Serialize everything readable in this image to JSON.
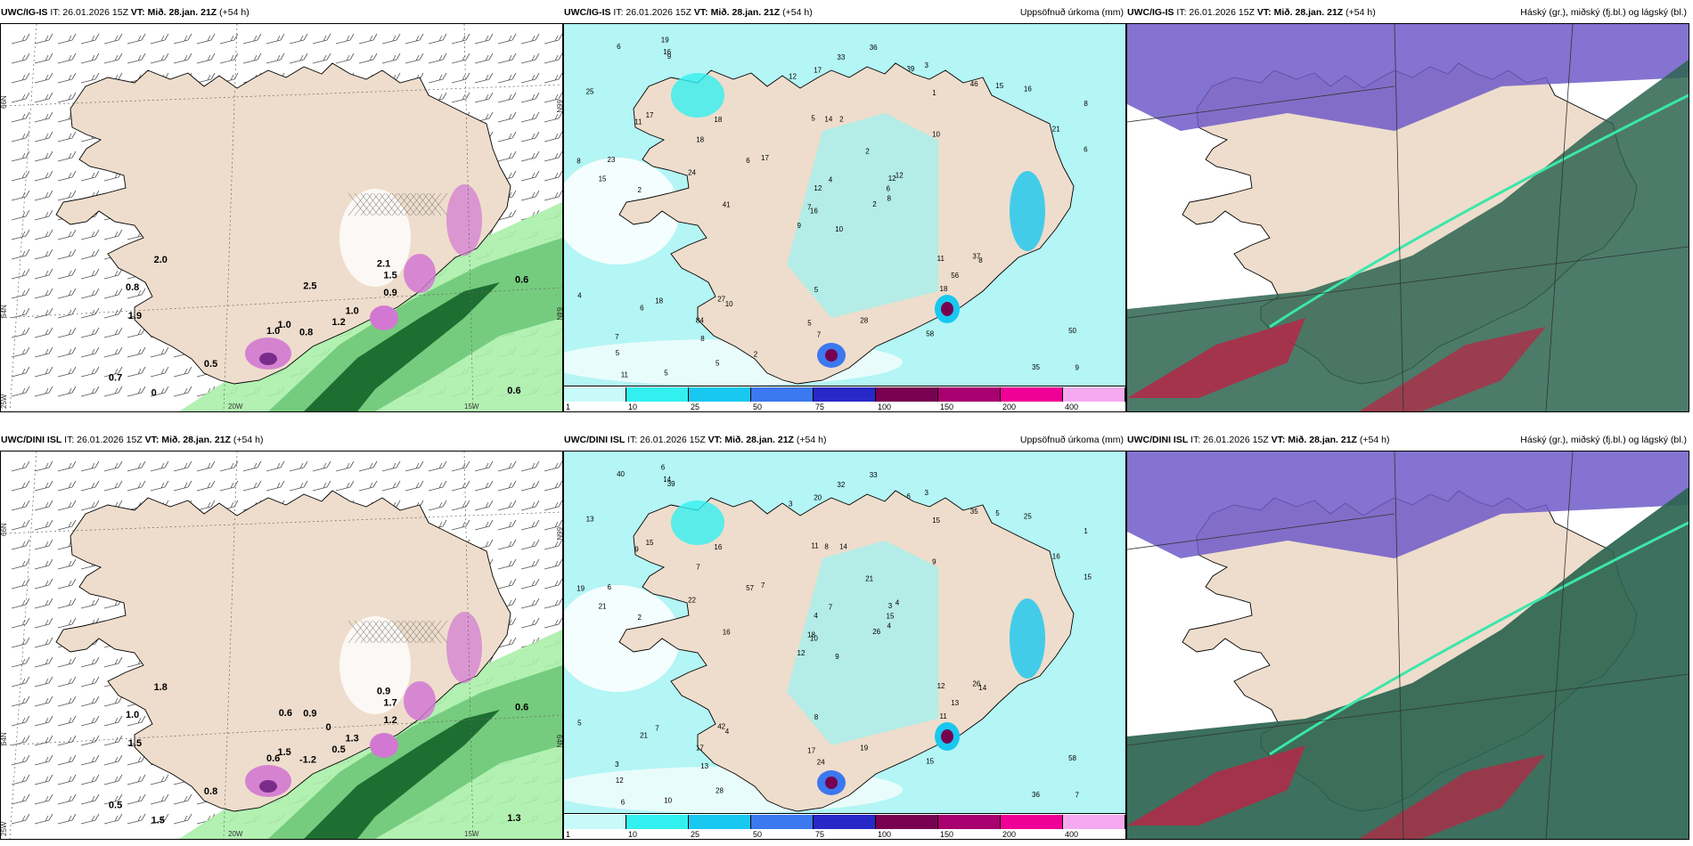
{
  "panels": {
    "p1": {
      "model": "UWC/IG-IS",
      "it": "IT: 26.01.2026 15Z",
      "vt": "VT: Mið. 28.jan. 21Z",
      "lead": "(+54 h)",
      "right": ""
    },
    "p2": {
      "model": "UWC/IG-IS",
      "it": "IT: 26.01.2026 15Z",
      "vt": "VT: Mið. 28.jan. 21Z",
      "lead": "(+54 h)",
      "right": "Uppsöfnuð úrkoma (mm)"
    },
    "p3": {
      "model": "UWC/IG-IS",
      "it": "IT: 26.01.2026 15Z",
      "vt": "VT: Mið. 28.jan. 21Z",
      "lead": "(+54 h)",
      "right": "Háský (gr.), miðský (fj.bl.) og lágský (bl.)"
    },
    "p4": {
      "model": "UWC/DINI ISL",
      "it": "IT: 26.01.2026 15Z",
      "vt": "VT: Mið. 28.jan. 21Z",
      "lead": "(+54 h)",
      "right": ""
    },
    "p5": {
      "model": "UWC/DINI ISL",
      "it": "IT: 26.01.2026 15Z",
      "vt": "VT: Mið. 28.jan. 21Z",
      "lead": "(+54 h)",
      "right": "Uppsöfnuð úrkoma (mm)"
    },
    "p6": {
      "model": "UWC/DINI ISL",
      "it": "IT: 26.01.2026 15Z",
      "vt": "VT: Mið. 28.jan. 21Z",
      "lead": "(+54 h)",
      "right": "Háský (gr.), miðský (fj.bl.) og lágský (bl.)"
    }
  },
  "axis_labels": {
    "lat66": "66N",
    "lat64": "64N",
    "lon25": "25W",
    "lon20": "20W",
    "lon15": "15W"
  },
  "colorbar": {
    "ticks": [
      "1",
      "10",
      "25",
      "50",
      "75",
      "100",
      "150",
      "200",
      "400"
    ],
    "colors": [
      "#c8fafa",
      "#33f0f0",
      "#18c8f0",
      "#3c78f0",
      "#2828c8",
      "#780050",
      "#a8006e",
      "#f00096",
      "#f5aaf0"
    ]
  },
  "colors": {
    "land": "#eeddcc",
    "sea_precip": "#b4f5f5",
    "grass_dark": "#1e6e32",
    "grass_light": "#aaf0aa",
    "snow_pink": "#d278d2",
    "cloud_high": "#6e5ac8",
    "cloud_mid": "#2d6450",
    "cloud_low": "#b42846"
  },
  "wind_panel_labels": {
    "top": [
      "0.8",
      "0.8",
      "1.0",
      "0.7",
      "1.0",
      "0.5",
      "2.1",
      "2.5",
      "1.5",
      "1.2",
      "2.0",
      "0.6",
      "1.9",
      "0.6",
      "1.0",
      "0.9",
      "0"
    ],
    "bottom": [
      "-1.2",
      "1.0",
      "1.5",
      "0.5",
      "1.3",
      "0.8",
      "0.9",
      "0.9",
      "1.7",
      "0.5",
      "1.8",
      "1.3",
      "1.5",
      "0.6",
      "0.6",
      "1.2",
      "1.5",
      "0.6",
      "0"
    ]
  },
  "precip_labels": {
    "top": [
      "10",
      "11",
      "16",
      "7",
      "12",
      "10",
      "3",
      "2",
      "1",
      "2",
      "9",
      "9",
      "2",
      "8",
      "9",
      "10",
      "5",
      "5",
      "2",
      "18",
      "17",
      "5",
      "8",
      "14",
      "12",
      "8",
      "17",
      "17",
      "15",
      "11",
      "6",
      "7",
      "5",
      "12",
      "18",
      "46",
      "27",
      "35",
      "50",
      "37",
      "36",
      "6",
      "24",
      "18",
      "5",
      "8",
      "6",
      "11",
      "7",
      "8",
      "6",
      "21",
      "25",
      "56",
      "58",
      "84",
      "16",
      "6",
      "28",
      "16",
      "33",
      "41",
      "23",
      "18",
      "15",
      "19",
      "39",
      "12",
      "4",
      "4",
      "5",
      "2"
    ],
    "bottom": [
      "9",
      "9",
      "10",
      "3",
      "3",
      "4",
      "3",
      "14",
      "15",
      "26",
      "39",
      "7",
      "2",
      "1",
      "12",
      "9",
      "10",
      "11",
      "21",
      "7",
      "7",
      "12",
      "13",
      "8",
      "4",
      "14",
      "15",
      "20",
      "21",
      "12",
      "15",
      "18",
      "17",
      "4",
      "16",
      "35",
      "42",
      "36",
      "58",
      "26",
      "33",
      "57",
      "22",
      "11",
      "28",
      "19",
      "15",
      "6",
      "24",
      "4",
      "21",
      "16",
      "13",
      "13",
      "15",
      "17",
      "14",
      "40",
      "19",
      "25",
      "32",
      "16",
      "6",
      "7",
      "5",
      "6",
      "6",
      "3",
      "7",
      "5",
      "8"
    ]
  }
}
